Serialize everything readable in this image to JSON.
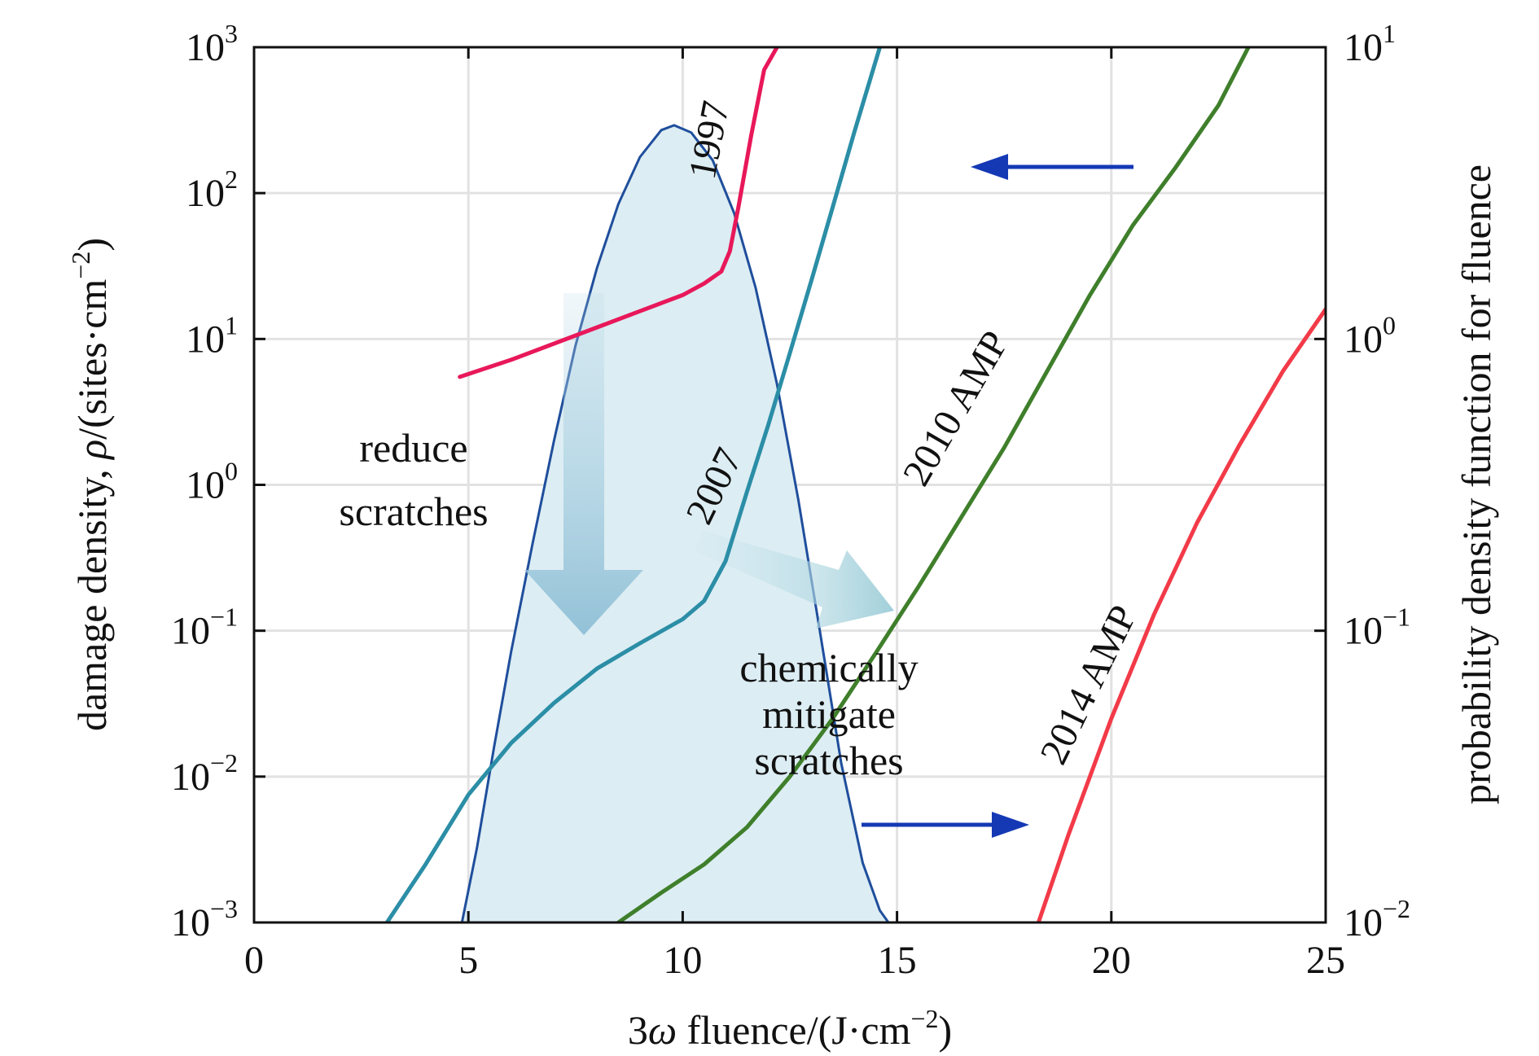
{
  "chart_data": {
    "type": "line",
    "xlabel_main": "3",
    "xlabel_sym": "ω",
    "xlabel_rest": " fluence/(J·cm",
    "xlabel_sup": "−2",
    "xlabel_end": ")",
    "ylabel_main": "damage density, ",
    "ylabel_sym": "ρ",
    "ylabel_rest": "/(sites·cm",
    "ylabel_sup": "−2",
    "ylabel_end": ")",
    "y2label": "probability density function for fluence",
    "xlim": [
      0,
      25
    ],
    "ylim": [
      0.001,
      1000
    ],
    "y2lim": [
      0.01,
      10
    ],
    "yscale": "log",
    "y2scale": "log",
    "grid": true,
    "x_ticks": [
      "0",
      "5",
      "10",
      "15",
      "20",
      "25"
    ],
    "y_ticks": [
      {
        "base": "10",
        "exp": "−3"
      },
      {
        "base": "10",
        "exp": "−2"
      },
      {
        "base": "10",
        "exp": "−1"
      },
      {
        "base": "10",
        "exp": "0"
      },
      {
        "base": "10",
        "exp": "1"
      },
      {
        "base": "10",
        "exp": "2"
      },
      {
        "base": "10",
        "exp": "3"
      }
    ],
    "y2_ticks": [
      {
        "base": "10",
        "exp": "−2"
      },
      {
        "base": "10",
        "exp": "−1"
      },
      {
        "base": "10",
        "exp": "0"
      },
      {
        "base": "10",
        "exp": "1"
      }
    ],
    "series": [
      {
        "name": "1997",
        "color": "#e8185a",
        "x": [
          4.8,
          6,
          7,
          8,
          9,
          10,
          10.5,
          10.9,
          11.1,
          11.3,
          11.6,
          11.9,
          12.2
        ],
        "y": [
          5.5,
          7.2,
          9.3,
          12,
          15.5,
          20,
          24,
          29,
          40,
          80,
          250,
          700,
          1000
        ]
      },
      {
        "name": "2007",
        "color": "#2b8ea6",
        "x": [
          3.1,
          4,
          5,
          6,
          7,
          8,
          9,
          10,
          10.5,
          11,
          11.5,
          12,
          12.5,
          13,
          13.5,
          14,
          14.6
        ],
        "y": [
          0.001,
          0.0025,
          0.0075,
          0.017,
          0.032,
          0.055,
          0.082,
          0.12,
          0.16,
          0.3,
          0.9,
          2.6,
          8,
          25,
          80,
          260,
          1000
        ]
      },
      {
        "name": "2010 AMP",
        "color": "#3f7f2b",
        "x": [
          8.5,
          9.5,
          10.5,
          11.5,
          12.5,
          13.5,
          14.5,
          15.5,
          16.5,
          17.5,
          18.5,
          19.5,
          20.5,
          21.5,
          22.5,
          23.2
        ],
        "y": [
          0.001,
          0.0016,
          0.0025,
          0.0045,
          0.01,
          0.025,
          0.07,
          0.2,
          0.6,
          1.8,
          6,
          20,
          60,
          150,
          400,
          1000
        ]
      },
      {
        "name": "2014 AMP",
        "color": "#f23a48",
        "x": [
          18.3,
          19,
          20,
          21,
          22,
          23,
          24,
          25
        ],
        "y": [
          0.001,
          0.004,
          0.025,
          0.13,
          0.55,
          1.9,
          6,
          16
        ]
      }
    ],
    "pdf": {
      "axis": "right",
      "color": "#1f4e9c",
      "fill": "#dcedf3",
      "x": [
        4.85,
        5.2,
        5.6,
        6,
        6.5,
        7,
        7.5,
        8,
        8.5,
        9,
        9.5,
        9.8,
        10.2,
        10.7,
        11.2,
        11.7,
        12.2,
        12.7,
        13.2,
        13.7,
        14.2,
        14.6,
        14.8
      ],
      "y": [
        0.01,
        0.018,
        0.04,
        0.085,
        0.2,
        0.45,
        0.95,
        1.75,
        2.9,
        4.2,
        5.2,
        5.4,
        5.1,
        4.1,
        2.7,
        1.5,
        0.7,
        0.28,
        0.1,
        0.035,
        0.016,
        0.011,
        0.01
      ]
    },
    "annotations": {
      "reduce_line1": "reduce",
      "reduce_line2": "scratches",
      "chem_line1": "chemically",
      "chem_line2": "mitigate",
      "chem_line3": "scratches"
    }
  }
}
